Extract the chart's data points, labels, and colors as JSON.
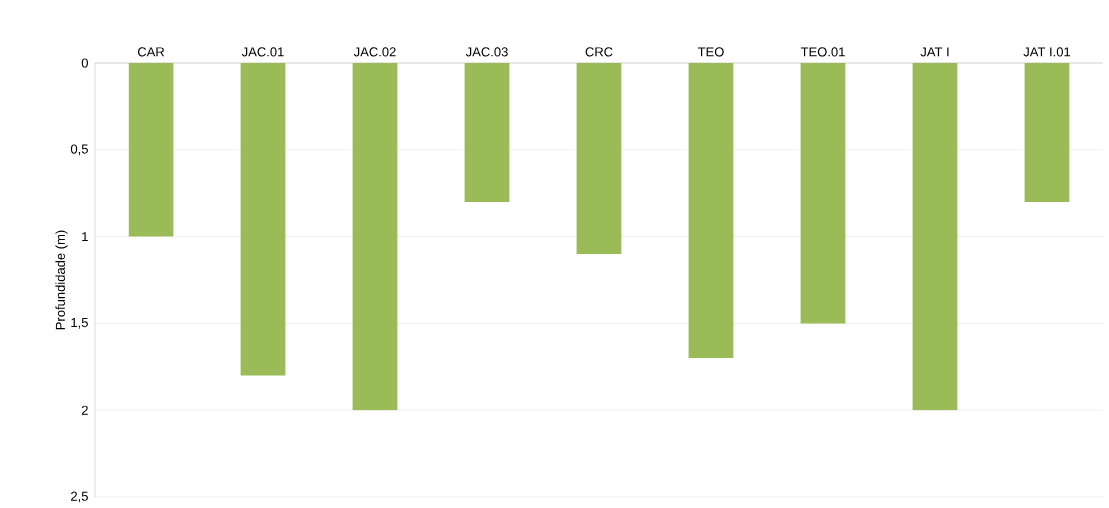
{
  "chart_data": {
    "type": "bar",
    "ylabel": "Profundidade (m)",
    "categories": [
      "CAR",
      "JAC.01",
      "JAC.02",
      "JAC.03",
      "CRC",
      "TEO",
      "TEO.01",
      "JAT I",
      "JAT I.01"
    ],
    "values": [
      1,
      1.8,
      2,
      0.8,
      1.1,
      1.7,
      1.5,
      2,
      0.8
    ],
    "color": "#9bbb59",
    "ylim": [
      2.5,
      0
    ],
    "yticks": [
      0,
      {
        "value": 0.5,
        "label": "0,5"
      },
      1,
      {
        "value": 1.5,
        "label": "1,5"
      },
      2,
      {
        "value": 2.5,
        "label": "2,5"
      }
    ],
    "grid": "y"
  }
}
